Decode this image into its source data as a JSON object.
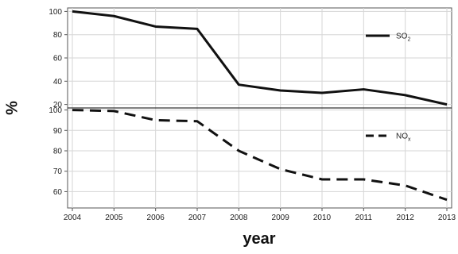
{
  "chart_data": {
    "type": "line",
    "xlabel": "year",
    "ylabel": "%",
    "x": [
      2004,
      2005,
      2006,
      2007,
      2008,
      2009,
      2010,
      2011,
      2012,
      2013
    ],
    "panels": [
      {
        "series_name": "SO",
        "series_sub": "2",
        "line_style": "solid",
        "color": "#111111",
        "ylim": [
          17,
          103
        ],
        "yticks": [
          20,
          40,
          60,
          80,
          100
        ],
        "values": [
          100,
          96,
          87,
          85,
          37,
          32,
          30,
          33,
          28,
          20
        ],
        "legend_position": "top-right"
      },
      {
        "series_name": "NO",
        "series_sub": "x",
        "line_style": "dashed",
        "color": "#111111",
        "ylim": [
          52,
          101
        ],
        "yticks": [
          60,
          70,
          80,
          90,
          100
        ],
        "values": [
          100,
          99.5,
          95,
          94.5,
          80,
          71,
          66,
          66,
          63,
          56
        ],
        "legend_position": "top-right"
      }
    ],
    "grid": true
  }
}
